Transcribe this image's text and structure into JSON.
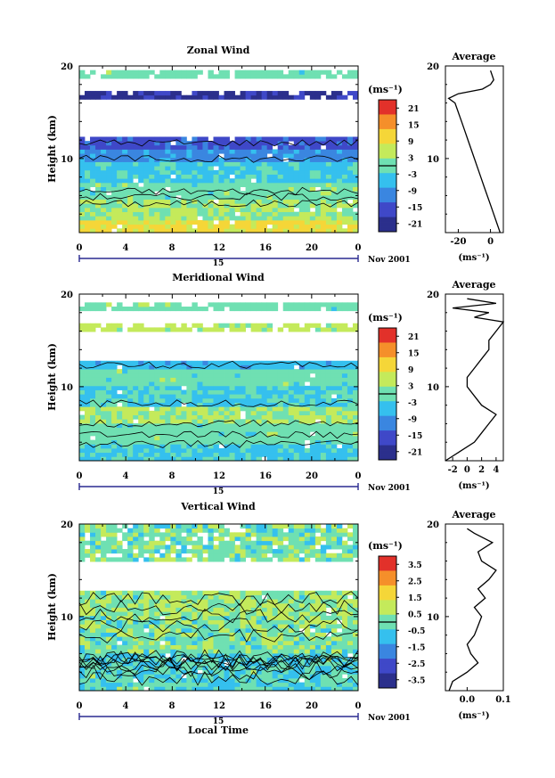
{
  "shared": {
    "time_ticks": [
      "0",
      "4",
      "8",
      "12",
      "16",
      "20",
      "0"
    ],
    "day_label": "15",
    "date_label": "Nov 2001",
    "ylabel": "Height (km)",
    "yticks": [
      "10",
      "20"
    ],
    "unit_label": "(ms⁻¹)",
    "avg_title": "Average",
    "avg_xlabel": "(ms⁻¹)",
    "xlabel_bottom": "Local Time"
  },
  "chart_data": [
    {
      "type": "heatmap",
      "title": "Zonal Wind",
      "x_range_hours": [
        0,
        24
      ],
      "y_range_km": [
        2,
        20
      ],
      "colorbar_ticks": [
        "21",
        "15",
        "9",
        "3",
        "-3",
        "-9",
        "-15",
        "-21"
      ],
      "colorbar_range": [
        -24,
        24
      ],
      "data_gap_above_km": 12,
      "layers": [
        {
          "from_km": 2,
          "to_km": 3.5,
          "value": 9
        },
        {
          "from_km": 3.5,
          "to_km": 5.5,
          "value": 3
        },
        {
          "from_km": 5.5,
          "to_km": 7.5,
          "value": 0
        },
        {
          "from_km": 7.5,
          "to_km": 9.5,
          "value": -4
        },
        {
          "from_km": 9.5,
          "to_km": 11,
          "value": -10
        },
        {
          "from_km": 11,
          "to_km": 12.5,
          "value": -15
        },
        {
          "from_km": 16.5,
          "to_km": 17.5,
          "value": -20
        },
        {
          "from_km": 18.5,
          "to_km": 19.5,
          "value": 0
        }
      ],
      "average": {
        "xticks": [
          "-20",
          "0"
        ],
        "xlim": [
          -28,
          8
        ],
        "profile_z": [
          2,
          3,
          4,
          5,
          6,
          7,
          8,
          9,
          10,
          11,
          12,
          13,
          14,
          15,
          16,
          16.5,
          17,
          17.5,
          18,
          18.5,
          19,
          19.5
        ],
        "profile_v": [
          6,
          4,
          2,
          0,
          -2,
          -4,
          -6,
          -8,
          -10,
          -12,
          -14,
          -16,
          -18,
          -20,
          -22,
          -26,
          -20,
          -5,
          0,
          2,
          1,
          0
        ]
      }
    },
    {
      "type": "heatmap",
      "title": "Meridional Wind",
      "x_range_hours": [
        0,
        24
      ],
      "y_range_km": [
        2,
        20
      ],
      "colorbar_ticks": [
        "21",
        "15",
        "9",
        "3",
        "-3",
        "-9",
        "-15",
        "-21"
      ],
      "colorbar_range": [
        -24,
        24
      ],
      "data_gap_above_km": 13,
      "layers": [
        {
          "from_km": 2,
          "to_km": 4,
          "value": -4
        },
        {
          "from_km": 4,
          "to_km": 6,
          "value": 0
        },
        {
          "from_km": 6,
          "to_km": 8,
          "value": 3
        },
        {
          "from_km": 8,
          "to_km": 10,
          "value": -3
        },
        {
          "from_km": 10,
          "to_km": 12,
          "value": 0
        },
        {
          "from_km": 12,
          "to_km": 13,
          "value": -6
        },
        {
          "from_km": 16,
          "to_km": 17,
          "value": 5
        },
        {
          "from_km": 18,
          "to_km": 19,
          "value": 0
        }
      ],
      "average": {
        "xticks": [
          "-2",
          "0",
          "2",
          "4"
        ],
        "xlim": [
          -3,
          5
        ],
        "profile_z": [
          2,
          3,
          4,
          5,
          6,
          7,
          8,
          9,
          10,
          11,
          12,
          13,
          14,
          15,
          16,
          17,
          17.5,
          18,
          18.5,
          19,
          19.5
        ],
        "profile_v": [
          -3,
          -1,
          1,
          2,
          3,
          4,
          2,
          1,
          0,
          0,
          1,
          2,
          3,
          3,
          4,
          5,
          1,
          3,
          -2,
          4,
          0
        ]
      }
    },
    {
      "type": "heatmap",
      "title": "Vertical Wind",
      "x_range_hours": [
        0,
        24
      ],
      "y_range_km": [
        2,
        20
      ],
      "colorbar_ticks": [
        "3.5",
        "2.5",
        "1.5",
        "0.5",
        "-0.5",
        "-1.5",
        "-2.5",
        "-3.5"
      ],
      "colorbar_range": [
        -4,
        4
      ],
      "data_gap_above_km": 13,
      "layers": [
        {
          "from_km": 2,
          "to_km": 6,
          "value": -0.4
        },
        {
          "from_km": 6,
          "to_km": 10,
          "value": 0.2
        },
        {
          "from_km": 10,
          "to_km": 13,
          "value": 0.4
        },
        {
          "from_km": 16,
          "to_km": 20,
          "value": 0.1
        }
      ],
      "average": {
        "xticks": [
          "0.0",
          "0.1"
        ],
        "xlim": [
          -0.06,
          0.1
        ],
        "profile_z": [
          2,
          3,
          4,
          5,
          6,
          7,
          8,
          9,
          10,
          11,
          12,
          13,
          14,
          15,
          16,
          17,
          18,
          19,
          19.5
        ],
        "profile_v": [
          -0.05,
          -0.04,
          0.0,
          0.03,
          0.01,
          0.0,
          0.02,
          0.03,
          0.04,
          0.02,
          0.05,
          0.03,
          0.06,
          0.08,
          0.04,
          0.03,
          0.07,
          0.02,
          0.0
        ]
      }
    }
  ]
}
